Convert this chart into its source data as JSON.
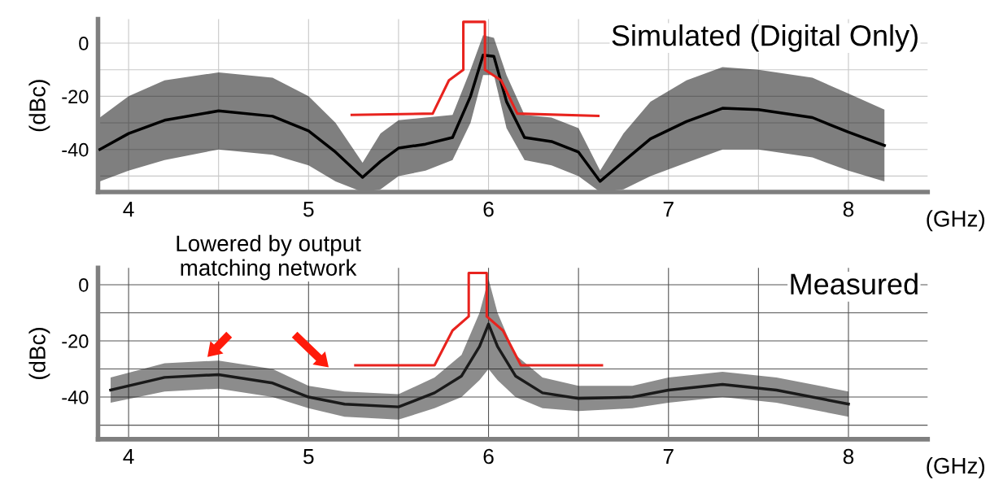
{
  "chart_data": [
    {
      "type": "line",
      "title": "Simulated (Digital Only)",
      "xlabel": "(GHz)",
      "ylabel": "(dBc)",
      "xlim": [
        3.83,
        8.44
      ],
      "ylim": [
        -56,
        9
      ],
      "xticks": [
        4,
        {
          "value": 4.5,
          "label": null
        },
        5,
        {
          "value": 5.5,
          "label": null
        },
        6,
        {
          "value": 6.5,
          "label": null
        },
        7,
        {
          "value": 7.5,
          "label": null
        },
        8
      ],
      "yticks": [
        {
          "value": -50,
          "label": null
        },
        -40,
        {
          "value": -30,
          "label": null
        },
        -20,
        {
          "value": -10,
          "label": null
        },
        0
      ],
      "grid": true,
      "legend": false,
      "series": [
        {
          "color": "#000000",
          "x": [
            3.84,
            4.0,
            4.2,
            4.5,
            4.8,
            5.0,
            5.15,
            5.3,
            5.4,
            5.5,
            5.65,
            5.8,
            5.9,
            5.97,
            6.03,
            6.1,
            6.2,
            6.35,
            6.5,
            6.62,
            6.75,
            6.9,
            7.1,
            7.3,
            7.5,
            7.8,
            8.0,
            8.2
          ],
          "values": [
            -40,
            -34,
            -29,
            -25.5,
            -27.5,
            -33,
            -41,
            -50.5,
            -44.5,
            -39.5,
            -38,
            -35.5,
            -20,
            -4.5,
            -5,
            -22,
            -35.5,
            -37,
            -41,
            -52,
            -44.5,
            -36,
            -29.5,
            -24.5,
            -25,
            -28,
            -33.5,
            -38.5
          ],
          "upper": [
            -28,
            -20,
            -14,
            -11,
            -13,
            -20,
            -30,
            -45,
            -34,
            -29,
            -28,
            -27,
            -10,
            3,
            2,
            -12,
            -27,
            -28,
            -32,
            -48,
            -34,
            -22,
            -14,
            -9,
            -10,
            -13,
            -19,
            -25
          ],
          "lower": [
            -52,
            -48,
            -44,
            -40,
            -42,
            -46,
            -52,
            -56,
            -55,
            -50,
            -48,
            -44,
            -30,
            -12,
            -12,
            -32,
            -44,
            -46,
            -50,
            -56,
            -55,
            -50,
            -45,
            -40,
            -40,
            -43,
            -48,
            -52
          ]
        },
        {
          "color": "#e8231e",
          "x": [
            5.24,
            5.69,
            5.78,
            5.86,
            5.86,
            5.98,
            5.98,
            6.07,
            6.16,
            6.61
          ],
          "values": [
            -27,
            -26.5,
            -14,
            -10,
            8,
            8,
            -10,
            -14,
            -26.5,
            -27.4
          ]
        }
      ]
    },
    {
      "type": "line",
      "title": "Measured",
      "xlabel": "(GHz)",
      "ylabel": "(dBc)",
      "xlim": [
        3.83,
        8.44
      ],
      "ylim": [
        -55,
        6
      ],
      "xticks": [
        4,
        {
          "value": 4.5,
          "label": null
        },
        5,
        {
          "value": 5.5,
          "label": null
        },
        6,
        {
          "value": 6.5,
          "label": null
        },
        7,
        {
          "value": 7.5,
          "label": null
        },
        8
      ],
      "yticks": [
        {
          "value": -50,
          "label": null
        },
        -40,
        {
          "value": -30,
          "label": null
        },
        -20,
        {
          "value": -10,
          "label": null
        },
        0
      ],
      "grid": true,
      "legend": false,
      "annotations": [
        "Lowered by output\nmatching network"
      ],
      "series": [
        {
          "color": "#1a1a1a",
          "x": [
            3.9,
            4.2,
            4.5,
            4.8,
            5.0,
            5.2,
            5.5,
            5.7,
            5.85,
            5.95,
            6.0,
            6.05,
            6.15,
            6.3,
            6.5,
            6.8,
            7.0,
            7.3,
            7.6,
            8.0
          ],
          "values": [
            -37.5,
            -33,
            -32,
            -35,
            -40,
            -42.5,
            -43.5,
            -38.5,
            -32.5,
            -22,
            -14,
            -22,
            -32.5,
            -38.5,
            -40.5,
            -40,
            -37.5,
            -35.5,
            -37.5,
            -42.5
          ],
          "upper": [
            -33,
            -28,
            -27,
            -30,
            -36,
            -38,
            -39,
            -33,
            -25,
            -10,
            2,
            -10,
            -25,
            -33,
            -36,
            -36,
            -33,
            -31,
            -33,
            -38
          ],
          "lower": [
            -42,
            -38,
            -37,
            -40,
            -44,
            -47,
            -48,
            -44,
            -40,
            -34,
            -30,
            -34,
            -40,
            -44,
            -45,
            -44,
            -42,
            -40,
            -42,
            -47
          ]
        },
        {
          "color": "#e8231e",
          "x": [
            5.26,
            5.7,
            5.8,
            5.89,
            5.89,
            5.99,
            5.99,
            6.08,
            6.18,
            6.63
          ],
          "values": [
            -28.7,
            -28.7,
            -16.3,
            -11.3,
            4.2,
            4.2,
            -11.3,
            -16.3,
            -28.7,
            -28.7
          ]
        }
      ]
    }
  ]
}
